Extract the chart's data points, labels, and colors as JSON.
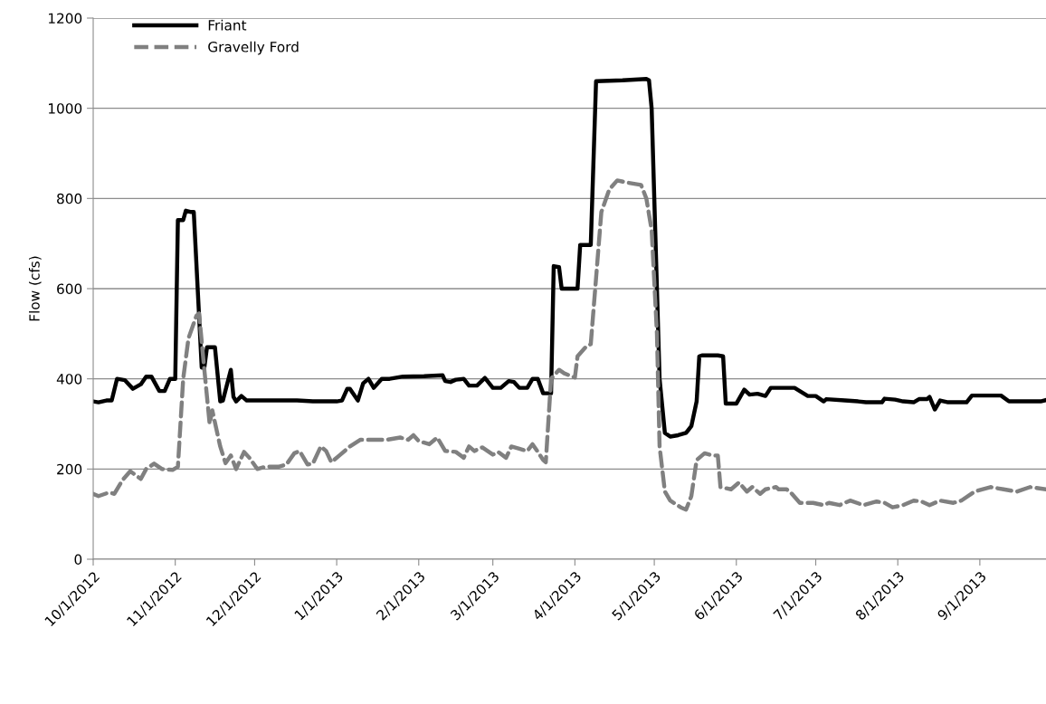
{
  "chart_data": {
    "type": "line",
    "ylabel": "Flow (cfs)",
    "xlim": [
      "2012-10-01",
      "2013-09-26"
    ],
    "xticks": [
      {
        "value": "2012-10-01",
        "label": "10/1/2012"
      },
      {
        "value": "2012-11-01",
        "label": "11/1/2012"
      },
      {
        "value": "2012-12-01",
        "label": "12/1/2012"
      },
      {
        "value": "2013-01-01",
        "label": "1/1/2013"
      },
      {
        "value": "2013-02-01",
        "label": "2/1/2013"
      },
      {
        "value": "2013-03-01",
        "label": "3/1/2013"
      },
      {
        "value": "2013-04-01",
        "label": "4/1/2013"
      },
      {
        "value": "2013-05-01",
        "label": "5/1/2013"
      },
      {
        "value": "2013-06-01",
        "label": "6/1/2013"
      },
      {
        "value": "2013-07-01",
        "label": "7/1/2013"
      },
      {
        "value": "2013-08-01",
        "label": "8/1/2013"
      },
      {
        "value": "2013-09-01",
        "label": "9/1/2013"
      }
    ],
    "ylim": [
      0,
      1200
    ],
    "yticks": [
      0,
      200,
      400,
      600,
      800,
      1000,
      1200
    ],
    "grid": "y",
    "legend": "top left",
    "marker": "none",
    "series": [
      {
        "name": "Friant",
        "color": "#000000",
        "line_style": "solid",
        "x": [
          "2012-10-01",
          "2012-10-03",
          "2012-10-06",
          "2012-10-08",
          "2012-10-10",
          "2012-10-13",
          "2012-10-16",
          "2012-10-19",
          "2012-10-21",
          "2012-10-23",
          "2012-10-26",
          "2012-10-28",
          "2012-10-30",
          "2012-11-01",
          "2012-11-02",
          "2012-11-04",
          "2012-11-05",
          "2012-11-07",
          "2012-11-08",
          "2012-11-11",
          "2012-11-12",
          "2012-11-13",
          "2012-11-16",
          "2012-11-18",
          "2012-11-19",
          "2012-11-22",
          "2012-11-23",
          "2012-11-24",
          "2012-11-26",
          "2012-11-28",
          "2012-12-07",
          "2012-12-17",
          "2012-12-23",
          "2012-12-27",
          "2013-01-01",
          "2013-01-03",
          "2013-01-05",
          "2013-01-06",
          "2013-01-09",
          "2013-01-11",
          "2013-01-13",
          "2013-01-15",
          "2013-01-18",
          "2013-01-21",
          "2013-01-26",
          "2013-02-03",
          "2013-02-10",
          "2013-02-11",
          "2013-02-13",
          "2013-02-15",
          "2013-02-18",
          "2013-02-20",
          "2013-02-23",
          "2013-02-26",
          "2013-03-01",
          "2013-03-04",
          "2013-03-07",
          "2013-03-09",
          "2013-03-11",
          "2013-03-14",
          "2013-03-16",
          "2013-03-18",
          "2013-03-20",
          "2013-03-23",
          "2013-03-24",
          "2013-03-26",
          "2013-03-27",
          "2013-04-02",
          "2013-04-03",
          "2013-04-07",
          "2013-04-09",
          "2013-04-19",
          "2013-04-28",
          "2013-04-29",
          "2013-04-30",
          "2013-05-03",
          "2013-05-05",
          "2013-05-07",
          "2013-05-10",
          "2013-05-13",
          "2013-05-15",
          "2013-05-17",
          "2013-05-18",
          "2013-05-19",
          "2013-05-25",
          "2013-05-27",
          "2013-05-28",
          "2013-06-01",
          "2013-06-04",
          "2013-06-06",
          "2013-06-09",
          "2013-06-12",
          "2013-06-14",
          "2013-06-23",
          "2013-06-28",
          "2013-07-01",
          "2013-07-04",
          "2013-07-05",
          "2013-07-12",
          "2013-07-17",
          "2013-07-20",
          "2013-07-26",
          "2013-07-27",
          "2013-07-31",
          "2013-08-03",
          "2013-08-07",
          "2013-08-09",
          "2013-08-12",
          "2013-08-13",
          "2013-08-15",
          "2013-08-17",
          "2013-08-20",
          "2013-08-27",
          "2013-08-29",
          "2013-09-09",
          "2013-09-12",
          "2013-09-24",
          "2013-09-26"
        ],
        "values": [
          350,
          348,
          352,
          352,
          400,
          397,
          378,
          388,
          405,
          405,
          373,
          373,
          400,
          400,
          752,
          752,
          773,
          770,
          770,
          425,
          425,
          470,
          470,
          350,
          352,
          420,
          360,
          350,
          362,
          352,
          352,
          352,
          350,
          350,
          350,
          352,
          378,
          378,
          352,
          390,
          400,
          380,
          400,
          400,
          405,
          406,
          408,
          395,
          393,
          398,
          400,
          385,
          385,
          402,
          380,
          380,
          395,
          393,
          380,
          380,
          400,
          400,
          368,
          368,
          650,
          648,
          600,
          600,
          697,
          697,
          1060,
          1062,
          1065,
          1062,
          1000,
          400,
          280,
          272,
          275,
          280,
          295,
          350,
          450,
          452,
          452,
          450,
          345,
          345,
          376,
          365,
          367,
          362,
          380,
          380,
          362,
          362,
          350,
          355,
          352,
          350,
          348,
          348,
          356,
          354,
          350,
          348,
          355,
          355,
          360,
          332,
          352,
          348,
          348,
          363,
          363,
          350,
          350,
          353
        ]
      },
      {
        "name": "Gravelly Ford",
        "color": "#808080",
        "line_style": "dashed",
        "x": [
          "2012-10-01",
          "2012-10-03",
          "2012-10-07",
          "2012-10-09",
          "2012-10-12",
          "2012-10-15",
          "2012-10-19",
          "2012-10-21",
          "2012-10-24",
          "2012-10-27",
          "2012-10-31",
          "2012-11-02",
          "2012-11-04",
          "2012-11-06",
          "2012-11-09",
          "2012-11-10",
          "2012-11-12",
          "2012-11-14",
          "2012-11-15",
          "2012-11-18",
          "2012-11-20",
          "2012-11-22",
          "2012-11-24",
          "2012-11-27",
          "2012-11-29",
          "2012-12-02",
          "2012-12-05",
          "2012-12-10",
          "2012-12-13",
          "2012-12-16",
          "2012-12-18",
          "2012-12-21",
          "2012-12-23",
          "2012-12-26",
          "2012-12-28",
          "2012-12-30",
          "2013-01-02",
          "2013-01-06",
          "2013-01-10",
          "2013-01-15",
          "2013-01-20",
          "2013-01-25",
          "2013-01-28",
          "2013-01-30",
          "2013-02-01",
          "2013-02-05",
          "2013-02-08",
          "2013-02-11",
          "2013-02-15",
          "2013-02-18",
          "2013-02-20",
          "2013-02-22",
          "2013-02-25",
          "2013-03-01",
          "2013-03-03",
          "2013-03-06",
          "2013-03-08",
          "2013-03-11",
          "2013-03-14",
          "2013-03-16",
          "2013-03-18",
          "2013-03-20",
          "2013-03-21",
          "2013-03-23",
          "2013-03-26",
          "2013-03-28",
          "2013-04-01",
          "2013-04-02",
          "2013-04-05",
          "2013-04-07",
          "2013-04-11",
          "2013-04-14",
          "2013-04-17",
          "2013-04-21",
          "2013-04-26",
          "2013-04-28",
          "2013-04-30",
          "2013-05-02",
          "2013-05-03",
          "2013-05-05",
          "2013-05-07",
          "2013-05-11",
          "2013-05-13",
          "2013-05-15",
          "2013-05-17",
          "2013-05-20",
          "2013-05-23",
          "2013-05-25",
          "2013-05-26",
          "2013-05-30",
          "2013-06-02",
          "2013-06-05",
          "2013-06-07",
          "2013-06-10",
          "2013-06-12",
          "2013-06-16",
          "2013-06-17",
          "2013-06-20",
          "2013-06-22",
          "2013-06-25",
          "2013-06-30",
          "2013-07-04",
          "2013-07-06",
          "2013-07-10",
          "2013-07-14",
          "2013-07-19",
          "2013-07-24",
          "2013-07-27",
          "2013-07-30",
          "2013-08-03",
          "2013-08-07",
          "2013-08-10",
          "2013-08-13",
          "2013-08-17",
          "2013-08-22",
          "2013-08-25",
          "2013-08-30",
          "2013-09-05",
          "2013-09-10",
          "2013-09-15",
          "2013-09-20",
          "2013-09-26"
        ],
        "values": [
          145,
          140,
          148,
          145,
          175,
          195,
          178,
          200,
          212,
          200,
          198,
          205,
          400,
          490,
          540,
          545,
          420,
          300,
          330,
          250,
          213,
          230,
          200,
          238,
          225,
          200,
          205,
          205,
          210,
          235,
          240,
          210,
          212,
          250,
          240,
          215,
          230,
          250,
          265,
          265,
          265,
          270,
          265,
          275,
          262,
          255,
          270,
          240,
          238,
          225,
          250,
          240,
          248,
          232,
          238,
          225,
          250,
          245,
          240,
          255,
          238,
          220,
          215,
          400,
          420,
          412,
          403,
          450,
          470,
          477,
          770,
          820,
          840,
          835,
          830,
          800,
          730,
          500,
          250,
          150,
          130,
          115,
          110,
          140,
          220,
          235,
          230,
          230,
          160,
          155,
          170,
          150,
          160,
          145,
          155,
          160,
          155,
          155,
          145,
          125,
          125,
          120,
          125,
          120,
          130,
          120,
          128,
          125,
          115,
          120,
          130,
          128,
          120,
          130,
          125,
          130,
          150,
          160,
          155,
          150,
          160,
          155
        ]
      }
    ]
  }
}
